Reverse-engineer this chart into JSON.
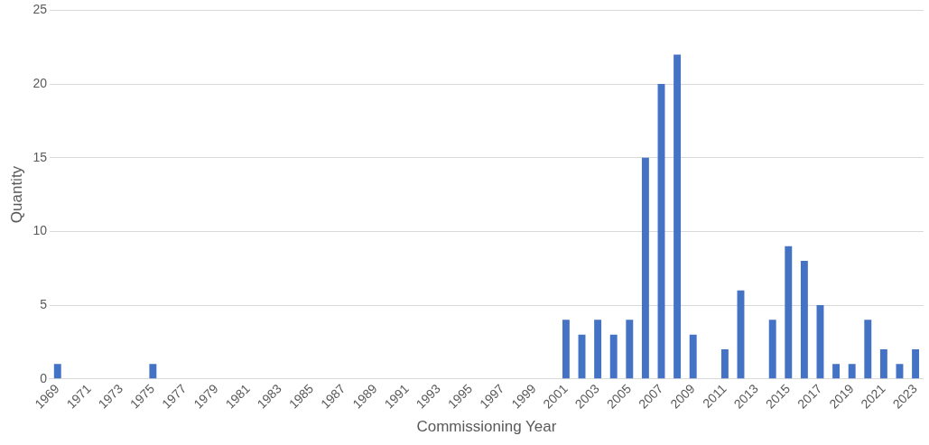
{
  "chart_data": {
    "type": "bar",
    "xlabel": "Commissioning Year",
    "ylabel": "Quantity",
    "categories": [
      "1969",
      null,
      "1971",
      null,
      "1973",
      null,
      "1975",
      null,
      "1977",
      null,
      "1979",
      null,
      "1981",
      null,
      "1983",
      null,
      "1985",
      null,
      "1987",
      null,
      "1989",
      null,
      "1991",
      null,
      "1993",
      null,
      "1995",
      null,
      "1997",
      null,
      "1999",
      null,
      "2001",
      null,
      "2003",
      null,
      "2005",
      null,
      "2007",
      null,
      "2009",
      null,
      "2011",
      null,
      "2013",
      null,
      "2015",
      null,
      "2017",
      null,
      "2019",
      null,
      "2021",
      null,
      "2023"
    ],
    "values": [
      1,
      0,
      0,
      0,
      0,
      0,
      1,
      0,
      0,
      0,
      0,
      0,
      0,
      0,
      0,
      0,
      0,
      0,
      0,
      0,
      0,
      0,
      0,
      0,
      0,
      0,
      0,
      0,
      0,
      0,
      0,
      0,
      4,
      3,
      4,
      3,
      4,
      15,
      20,
      22,
      3,
      0,
      2,
      6,
      0,
      4,
      9,
      8,
      5,
      1,
      1,
      4,
      2,
      1,
      2
    ],
    "color": "#4472c4",
    "ylim": [
      0,
      25
    ],
    "yticks": [
      0,
      5,
      10,
      15,
      20,
      25
    ],
    "grid": "y",
    "legend": false
  }
}
